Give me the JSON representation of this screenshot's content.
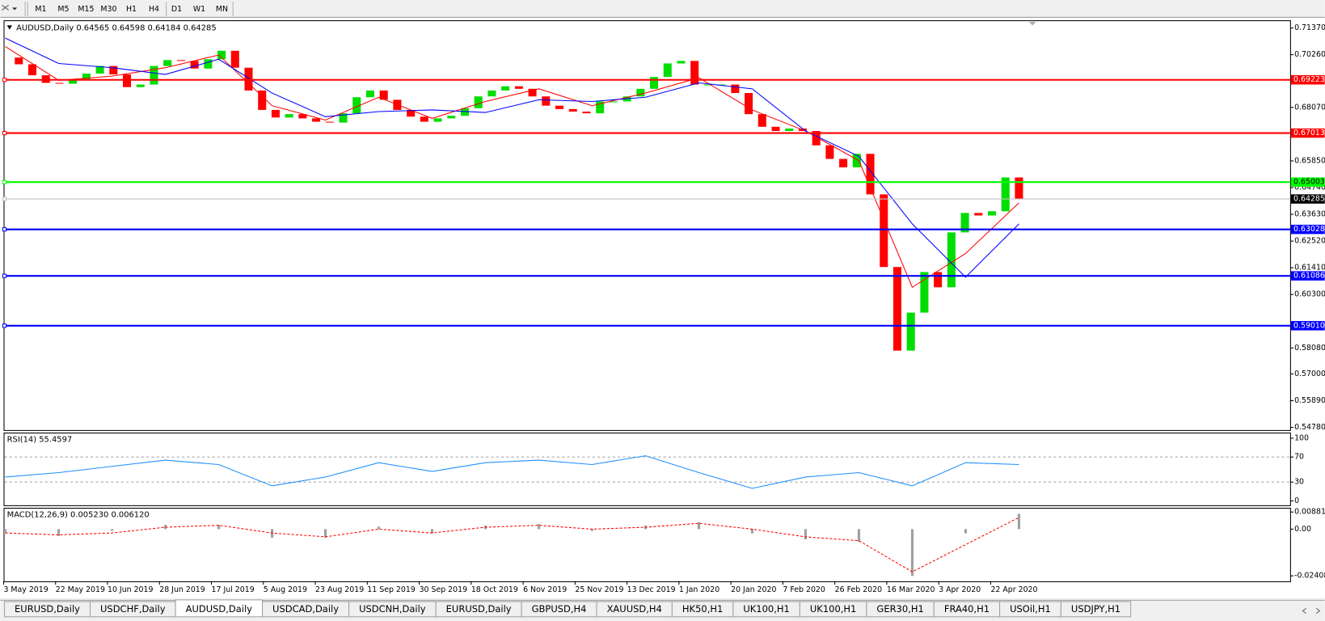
{
  "toolbar": {
    "timeframes": [
      "M1",
      "M5",
      "M15",
      "M30",
      "H1",
      "H4",
      "D1",
      "W1",
      "MN"
    ]
  },
  "chart_data": [
    {
      "type": "candlestick",
      "title": "AUDUSD,Daily  0.64565 0.64598 0.64184 0.64285",
      "up_color": "#00dd00",
      "down_color": "#ff0000",
      "values": [
        0.70142,
        0.69862,
        0.69406,
        0.6909,
        0.69055,
        0.69195,
        0.69476,
        0.69791,
        0.69441,
        0.68914,
        0.6902,
        0.69791,
        0.70037,
        0.70002,
        0.69686,
        0.70072,
        0.70423,
        0.69721,
        0.68774,
        0.67967,
        0.67652,
        0.67792,
        0.67616,
        0.67476,
        0.67441,
        0.67827,
        0.68493,
        0.68774,
        0.68388,
        0.67967,
        0.67687,
        0.67476,
        0.67616,
        0.67722,
        0.68037,
        0.68528,
        0.68774,
        0.68949,
        0.68844,
        0.68528,
        0.68143,
        0.68002,
        0.67897,
        0.67827,
        0.68318,
        0.68318,
        0.68528,
        0.68844,
        0.69335,
        0.69897,
        0.70002,
        0.6902,
        0.6902,
        0.6902,
        0.68669,
        0.67792,
        0.67266,
        0.6709,
        0.67195,
        0.6709,
        0.66494,
        0.65933,
        0.65582,
        0.66143,
        0.64459,
        0.61442,
        0.57969,
        0.59548,
        0.61232,
        0.606,
        0.6288,
        0.63687,
        0.63582,
        0.63757,
        0.65161,
        0.64285
      ],
      "series": [
        {
          "color": "#ff0000",
          "values": [
            0.70598,
            0.69195,
            0.6937,
            0.69721,
            0.70247,
            0.68143,
            0.67546,
            0.68493,
            0.67616,
            0.68318,
            0.68844,
            0.68143,
            0.68669,
            0.693,
            0.67967,
            0.6709,
            0.65862,
            0.606,
            0.62003,
            0.64108
          ]
        },
        {
          "color": "#0000ff",
          "values": [
            0.70949,
            0.69897,
            0.69721,
            0.69441,
            0.70072,
            0.68669,
            0.67687,
            0.67897,
            0.67967,
            0.67862,
            0.68388,
            0.68318,
            0.68493,
            0.6909,
            0.68844,
            0.6709,
            0.66038,
            0.63231,
            0.61021,
            0.63231
          ]
        }
      ],
      "levels": [
        {
          "value": 0.69223,
          "color": "#ff0000"
        },
        {
          "value": 0.67013,
          "color": "#ff0000"
        },
        {
          "value": 0.65003,
          "color": "#00ff00"
        },
        {
          "value": 0.64285,
          "color": "#c0c0c0"
        },
        {
          "value": 0.63028,
          "color": "#0000ff"
        },
        {
          "value": 0.61086,
          "color": "#0000ff"
        },
        {
          "value": 0.5901,
          "label": "0.59010",
          "color": "#0000ff"
        }
      ],
      "ylim": [
        0.5467,
        0.7169
      ],
      "yticks": [
        {
          "value": 0.7137,
          "label": "0.71370"
        },
        {
          "value": 0.7026,
          "label": "0.70260"
        },
        {
          "value": 0.6807,
          "label": "0.68070"
        },
        {
          "value": 0.6585,
          "label": "0.65850"
        },
        {
          "value": 0.6474,
          "label": "0.64740"
        },
        {
          "value": 0.6363,
          "label": "0.63630"
        },
        {
          "value": 0.6252,
          "label": "0.62520"
        },
        {
          "value": 0.6141,
          "label": "0.61410"
        },
        {
          "value": 0.603,
          "label": "0.60300"
        },
        {
          "value": 0.5808,
          "label": "0.58080"
        },
        {
          "value": 0.57,
          "label": "0.57000"
        },
        {
          "value": 0.5589,
          "label": "0.55890"
        },
        {
          "value": 0.5478,
          "label": "0.54780"
        }
      ],
      "x_labels": [
        "3 May 2019",
        "22 May 2019",
        "10 Jun 2019",
        "28 Jun 2019",
        "17 Jul 2019",
        "5 Aug 2019",
        "23 Aug 2019",
        "11 Sep 2019",
        "30 Sep 2019",
        "18 Oct 2019",
        "6 Nov 2019",
        "25 Nov 2019",
        "13 Dec 2019",
        "1 Jan 2020",
        "20 Jan 2020",
        "7 Feb 2020",
        "26 Feb 2020",
        "16 Mar 2020",
        "3 Apr 2020",
        "22 Apr 2020"
      ]
    },
    {
      "type": "line",
      "title": "RSI(14) 55.4597",
      "color": "#1e90ff",
      "values": [
        38,
        45,
        55,
        65,
        58,
        24,
        38,
        61,
        47,
        61,
        65,
        58,
        72,
        45,
        20,
        38,
        45,
        24,
        61,
        58
      ],
      "ylim": [
        -7,
        109
      ],
      "yticks": [
        100,
        70,
        30,
        0
      ],
      "levels": [
        70,
        30
      ]
    },
    {
      "type": "bar",
      "title": "MACD(12,26,9) 0.005230 0.006120",
      "color": "#a0a0a0",
      "values": [
        -0.0022,
        -0.0035,
        -0.0009,
        0.0022,
        0.0022,
        -0.0044,
        -0.0044,
        0.0013,
        -0.0022,
        0.0018,
        0.0026,
        -0.0009,
        0.0018,
        0.0035,
        -0.0022,
        -0.0053,
        -0.0066,
        -0.0242,
        -0.0022,
        0.0079
      ],
      "series": [
        {
          "color": "#ff0000",
          "values": [
            -0.002,
            -0.003,
            -0.002,
            0.001,
            0.002,
            -0.002,
            -0.004,
            0,
            -0.002,
            0.001,
            0.002,
            0,
            0.001,
            0.003,
            0,
            -0.004,
            -0.006,
            -0.022,
            -0.008,
            0.006
          ]
        }
      ],
      "ylim": [
        -0.0269,
        0.011
      ],
      "yticks": [
        0.008815,
        {
          "value": 0,
          "label": "0.00"
        },
        -0.024082
      ]
    }
  ],
  "tabs": [
    "EURUSD,Daily",
    "USDCHF,Daily",
    "AUDUSD,Daily",
    "USDCAD,Daily",
    "USDCNH,Daily",
    "EURUSD,Daily",
    "GBPUSD,H4",
    "XAUUSD,H4",
    "HK50,H1",
    "UK100,H1",
    "UK100,H1",
    "GER30,H1",
    "FRA40,H1",
    "USOil,H1",
    "USDJPY,H1"
  ],
  "active_tab": 2
}
